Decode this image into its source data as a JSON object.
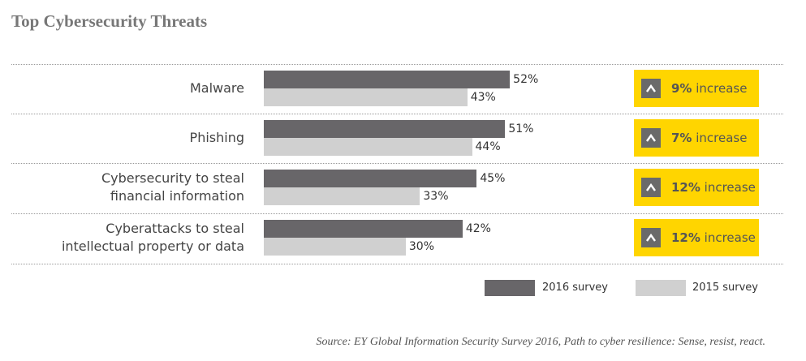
{
  "chart_data": {
    "type": "bar",
    "orientation": "horizontal",
    "title": "Top Cybersecurity Threats",
    "categories": [
      [
        "Malware"
      ],
      [
        "Phishing"
      ],
      [
        "Cybersecurity to steal",
        "financial information"
      ],
      [
        "Cyberattacks to steal",
        "intellectual property or data"
      ]
    ],
    "series": [
      {
        "name": "2016 survey",
        "values": [
          52,
          51,
          45,
          42
        ],
        "color": "#686669"
      },
      {
        "name": "2015 survey",
        "values": [
          43,
          44,
          33,
          30
        ],
        "color": "#d0d0d0"
      }
    ],
    "value_labels": [
      [
        "52%",
        "43%"
      ],
      [
        "51%",
        "44%"
      ],
      [
        "45%",
        "33%"
      ],
      [
        "42%",
        "30%"
      ]
    ],
    "increases": [
      {
        "amount": "9%",
        "text": "increase"
      },
      {
        "amount": "7%",
        "text": "increase"
      },
      {
        "amount": "12%",
        "text": "increase"
      },
      {
        "amount": "12%",
        "text": "increase"
      }
    ],
    "badge_color": "#ffd500",
    "badge_icon": "chevron-up-icon",
    "legend_position": "bottom-right",
    "source": "Source: EY Global Information Security Survey 2016, Path to cyber resilience: Sense, resist, react."
  }
}
